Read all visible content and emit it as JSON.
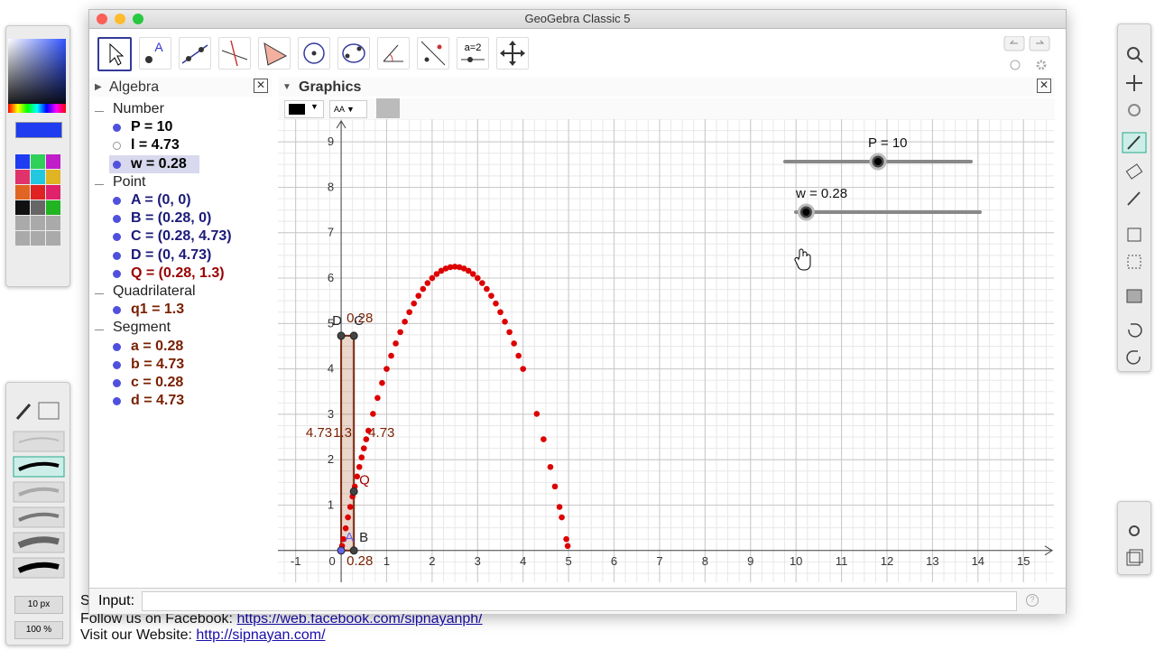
{
  "window": {
    "title": "GeoGebra Classic 5"
  },
  "toolbar": {
    "point_tool_label": "A",
    "slider_tool_label": "a=2"
  },
  "algebra": {
    "title": "Algebra",
    "groups": [
      {
        "name": "Number",
        "items": [
          {
            "text": "P = 10",
            "color": "#000000",
            "bullet": "filled"
          },
          {
            "text": "l = 4.73",
            "color": "#000000",
            "bullet": "hollow"
          },
          {
            "text": "w = 0.28",
            "color": "#000000",
            "bullet": "filled",
            "selected": true
          }
        ]
      },
      {
        "name": "Point",
        "items": [
          {
            "text": "A = (0, 0)",
            "color": "#1a1a7a",
            "bullet": "filled"
          },
          {
            "text": "B = (0.28, 0)",
            "color": "#1a1a7a",
            "bullet": "filled"
          },
          {
            "text": "C = (0.28, 4.73)",
            "color": "#1a1a7a",
            "bullet": "filled"
          },
          {
            "text": "D = (0, 4.73)",
            "color": "#1a1a7a",
            "bullet": "filled"
          },
          {
            "text": "Q = (0.28, 1.3)",
            "color": "#990000",
            "bullet": "filled"
          }
        ]
      },
      {
        "name": "Quadrilateral",
        "items": [
          {
            "text": "q1 = 1.3",
            "color": "#7a1f00",
            "bullet": "filled"
          }
        ]
      },
      {
        "name": "Segment",
        "items": [
          {
            "text": "a = 0.28",
            "color": "#7a1f00",
            "bullet": "filled"
          },
          {
            "text": "b = 4.73",
            "color": "#7a1f00",
            "bullet": "filled"
          },
          {
            "text": "c = 0.28",
            "color": "#7a1f00",
            "bullet": "filled"
          },
          {
            "text": "d = 4.73",
            "color": "#7a1f00",
            "bullet": "filled"
          }
        ]
      }
    ]
  },
  "graphics": {
    "title": "Graphics",
    "style_bar_text": "AA",
    "xlim": [
      -1.39,
      15.67
    ],
    "ylim": [
      -0.7,
      9.5
    ],
    "xticks": [
      -1,
      0,
      1,
      2,
      3,
      4,
      5,
      6,
      7,
      8,
      9,
      10,
      11,
      12,
      13,
      14,
      15
    ],
    "yticks": [
      1,
      2,
      3,
      4,
      5,
      6,
      7,
      8,
      9
    ],
    "minor_grid_step": 0.25,
    "sliders": [
      {
        "label": "P = 10",
        "value": 10,
        "min": 0,
        "max": 20
      },
      {
        "label": "w = 0.28",
        "value": 0.28,
        "min": 0,
        "max": 5
      }
    ],
    "points": [
      {
        "name": "A",
        "x": 0,
        "y": 0,
        "color": "#6666ee"
      },
      {
        "name": "B",
        "x": 0.28,
        "y": 0,
        "color": "#444444"
      },
      {
        "name": "C",
        "x": 0.28,
        "y": 4.73,
        "color": "#444444"
      },
      {
        "name": "D",
        "x": 0,
        "y": 4.73,
        "color": "#444444"
      },
      {
        "name": "Q",
        "x": 0.28,
        "y": 1.3,
        "color": "#444444"
      }
    ],
    "segment_labels": {
      "top": "0.28",
      "left": "4.73",
      "area": "1.3",
      "right": "4.73",
      "bottom": "0.28"
    },
    "trace": {
      "color": "#dd0000",
      "x": [
        0.02,
        0.05,
        0.1,
        0.15,
        0.2,
        0.25,
        0.3,
        0.35,
        0.4,
        0.45,
        0.5,
        0.55,
        0.6,
        0.7,
        0.8,
        0.9,
        1.0,
        1.1,
        1.2,
        1.3,
        1.4,
        1.5,
        1.6,
        1.7,
        1.8,
        1.9,
        2.0,
        2.1,
        2.2,
        2.3,
        2.4,
        2.5,
        2.6,
        2.7,
        2.8,
        2.9,
        3.0,
        3.1,
        3.2,
        3.3,
        3.4,
        3.5,
        3.6,
        3.7,
        3.8,
        3.9,
        4.0,
        4.3,
        4.45,
        4.6,
        4.7,
        4.8,
        4.85,
        4.95,
        4.98
      ],
      "y": [
        0.1,
        0.25,
        0.49,
        0.73,
        0.96,
        1.19,
        1.41,
        1.63,
        1.84,
        2.05,
        2.25,
        2.45,
        2.64,
        3.01,
        3.36,
        3.69,
        4,
        4.29,
        4.56,
        4.81,
        5.04,
        5.25,
        5.44,
        5.61,
        5.76,
        5.89,
        6,
        6.09,
        6.16,
        6.21,
        6.24,
        6.25,
        6.24,
        6.21,
        6.16,
        6.09,
        6,
        5.89,
        5.76,
        5.61,
        5.44,
        5.25,
        5.04,
        4.81,
        4.56,
        4.29,
        4,
        3.01,
        2.45,
        1.84,
        1.41,
        0.96,
        0.73,
        0.25,
        0.1
      ]
    }
  },
  "input": {
    "label": "Input:"
  },
  "left_panel": {
    "size": "10 px",
    "zoom": "100 %"
  },
  "footer": {
    "partial": "S",
    "facebook_label": "Follow us on Facebook:",
    "facebook_link": "https://web.facebook.com/sipnayanph/",
    "website_label": "Visit our Website:",
    "website_link": "http://sipnayan.com/"
  }
}
